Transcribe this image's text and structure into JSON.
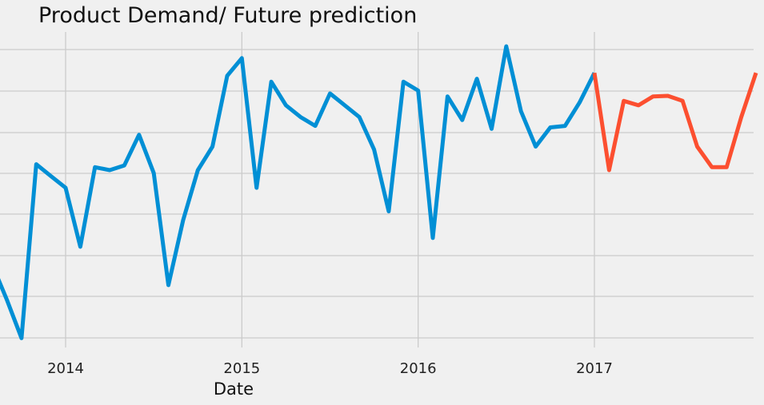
{
  "chart_data": {
    "type": "line",
    "title": "Product Demand/ Future prediction",
    "xlabel": "Date",
    "ylabel": "",
    "x_ticks": [
      "2014",
      "2015",
      "2016",
      "2017"
    ],
    "grid": true,
    "legend": "none",
    "colors": {
      "background": "#f0f0f0",
      "grid": "#cbcbcb",
      "actual": "#008fd5",
      "forecast": "#fc4f30"
    },
    "series": [
      {
        "values": [
          [
            "2013-08",
            0.26
          ],
          [
            "2013-09",
            0.14
          ],
          [
            "2013-10",
            0.01
          ],
          [
            "2013-11",
            0.6
          ],
          [
            "2013-12",
            0.56
          ],
          [
            "2014-01",
            0.52
          ],
          [
            "2014-02",
            0.32
          ],
          [
            "2014-03",
            0.59
          ],
          [
            "2014-04",
            0.58
          ],
          [
            "2014-05",
            0.596
          ],
          [
            "2014-06",
            0.7
          ],
          [
            "2014-07",
            0.57
          ],
          [
            "2014-08",
            0.19
          ],
          [
            "2014-09",
            0.41
          ],
          [
            "2014-10",
            0.58
          ],
          [
            "2014-11",
            0.66
          ],
          [
            "2014-12",
            0.9
          ],
          [
            "2015-01",
            0.96
          ],
          [
            "2015-02",
            0.52
          ],
          [
            "2015-03",
            0.88
          ],
          [
            "2015-04",
            0.8
          ],
          [
            "2015-05",
            0.76
          ],
          [
            "2015-06",
            0.73
          ],
          [
            "2015-07",
            0.84
          ],
          [
            "2015-08",
            0.8
          ],
          [
            "2015-09",
            0.76
          ],
          [
            "2015-10",
            0.65
          ],
          [
            "2015-11",
            0.44
          ],
          [
            "2015-12",
            0.88
          ],
          [
            "2016-01",
            0.85
          ],
          [
            "2016-02",
            0.35
          ],
          [
            "2016-03",
            0.83
          ],
          [
            "2016-04",
            0.75
          ],
          [
            "2016-05",
            0.89
          ],
          [
            "2016-06",
            0.72
          ],
          [
            "2016-07",
            1.0
          ],
          [
            "2016-08",
            0.78
          ],
          [
            "2016-09",
            0.66
          ],
          [
            "2016-10",
            0.725
          ],
          [
            "2016-11",
            0.73
          ],
          [
            "2016-12",
            0.81
          ],
          [
            "2017-01",
            0.91
          ]
        ]
      },
      {
        "values": [
          [
            "2017-01",
            0.91
          ],
          [
            "2017-02",
            0.58
          ],
          [
            "2017-03",
            0.815
          ],
          [
            "2017-04",
            0.8
          ],
          [
            "2017-05",
            0.83
          ],
          [
            "2017-06",
            0.832
          ],
          [
            "2017-07",
            0.815
          ],
          [
            "2017-08",
            0.66
          ],
          [
            "2017-09",
            0.59
          ],
          [
            "2017-10",
            0.59
          ],
          [
            "2017-11",
            0.76
          ],
          [
            "2017-12",
            0.91
          ]
        ]
      }
    ]
  }
}
